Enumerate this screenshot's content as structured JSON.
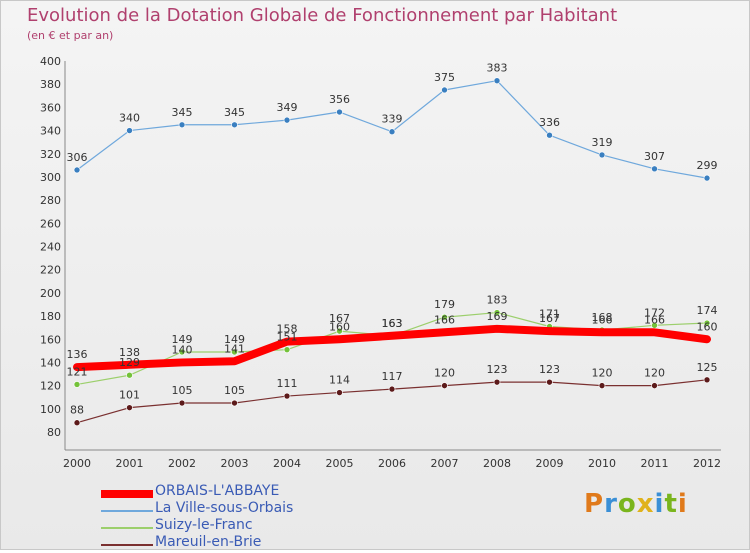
{
  "header": {
    "title": "Evolution de la Dotation Globale de Fonctionnement par Habitant",
    "subtitle": "(en € et par an)"
  },
  "logo": {
    "text": "Proxiti",
    "colors": [
      "#e07a1b",
      "#3a8fd6",
      "#7ab51d",
      "#e0b21b",
      "#3a8fd6",
      "#7ab51d",
      "#e07a1b"
    ]
  },
  "chart_data": {
    "type": "line",
    "x": [
      "2000",
      "2001",
      "2002",
      "2003",
      "2004",
      "2005",
      "2006",
      "2007",
      "2008",
      "2009",
      "2010",
      "2011",
      "2012"
    ],
    "ylim": [
      80,
      400
    ],
    "yticks": [
      80,
      100,
      120,
      140,
      160,
      180,
      200,
      220,
      240,
      260,
      280,
      300,
      320,
      340,
      360,
      380,
      400
    ],
    "grid": false,
    "legend_position": "bottom-left",
    "series": [
      {
        "name": "ORBAIS-L'ABBAYE",
        "color": "#ff0000",
        "values": [
          136,
          138,
          140,
          141,
          158,
          160,
          163,
          166,
          169,
          167,
          166,
          166,
          160
        ]
      },
      {
        "name": "La Ville-sous-Orbais",
        "color": "#6fa8dc",
        "values": [
          306,
          340,
          345,
          345,
          349,
          356,
          339,
          375,
          383,
          336,
          319,
          307,
          299
        ]
      },
      {
        "name": "Suizy-le-Franc",
        "color": "#9ccf6c",
        "values": [
          121,
          129,
          149,
          149,
          151,
          167,
          163,
          179,
          183,
          171,
          168,
          172,
          174
        ]
      },
      {
        "name": "Mareuil-en-Brie",
        "color": "#7a3030",
        "values": [
          88,
          101,
          105,
          105,
          111,
          114,
          117,
          120,
          123,
          123,
          120,
          120,
          125
        ]
      }
    ]
  }
}
